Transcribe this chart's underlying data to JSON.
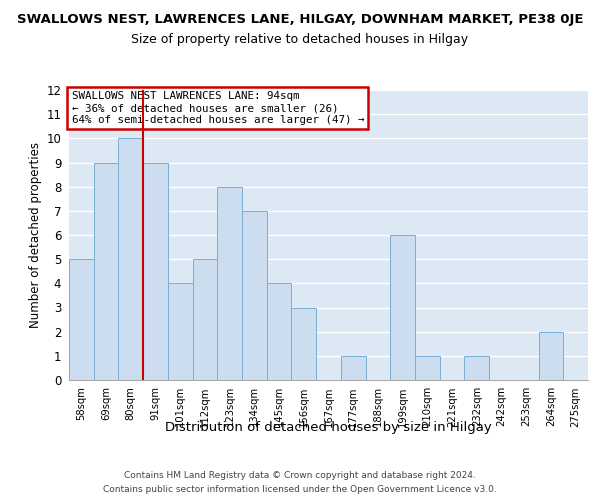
{
  "title": "SWALLOWS NEST, LAWRENCES LANE, HILGAY, DOWNHAM MARKET, PE38 0JE",
  "subtitle": "Size of property relative to detached houses in Hilgay",
  "xlabel": "Distribution of detached houses by size in Hilgay",
  "ylabel": "Number of detached properties",
  "bins": [
    "58sqm",
    "69sqm",
    "80sqm",
    "91sqm",
    "101sqm",
    "112sqm",
    "123sqm",
    "134sqm",
    "145sqm",
    "156sqm",
    "167sqm",
    "177sqm",
    "188sqm",
    "199sqm",
    "210sqm",
    "221sqm",
    "232sqm",
    "242sqm",
    "253sqm",
    "264sqm",
    "275sqm"
  ],
  "values": [
    5,
    9,
    10,
    9,
    4,
    5,
    8,
    7,
    4,
    3,
    0,
    1,
    0,
    6,
    1,
    0,
    1,
    0,
    0,
    2,
    0
  ],
  "bar_color": "#ccddf0",
  "bar_edge_color": "#7aaed4",
  "bg_color": "#dde8f5",
  "grid_color": "#ffffff",
  "redline_x": 2.5,
  "annotation_line1": "SWALLOWS NEST LAWRENCES LANE: 94sqm",
  "annotation_line2": "← 36% of detached houses are smaller (26)",
  "annotation_line3": "64% of semi-detached houses are larger (47) →",
  "ann_box_color": "#cc0000",
  "footer1": "Contains HM Land Registry data © Crown copyright and database right 2024.",
  "footer2": "Contains public sector information licensed under the Open Government Licence v3.0.",
  "ylim_max": 12
}
